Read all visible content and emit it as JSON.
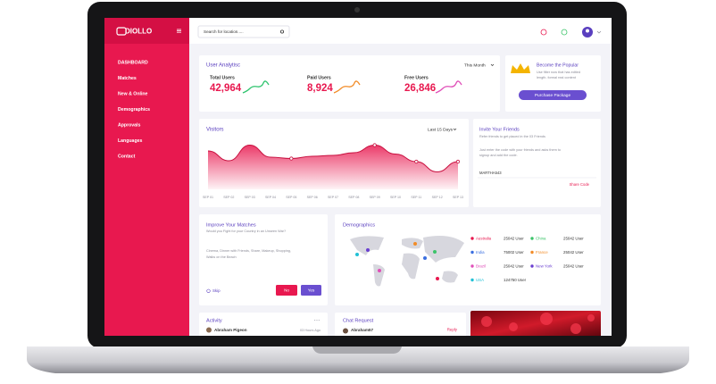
{
  "sidebar": {
    "logo": "DIOLLO",
    "menu": [
      "DASHBOARD",
      "Matches",
      "New & Online",
      "Demographics",
      "Approvals",
      "Languages",
      "Contact"
    ]
  },
  "topbar": {
    "search_placeholder": "Search for location....."
  },
  "user_analytics": {
    "title": "User Analytisc",
    "period": "This Month",
    "stats": [
      {
        "label": "Total Users",
        "value": "42,964"
      },
      {
        "label": "Paid Users",
        "value": "8,924"
      },
      {
        "label": "Free Users",
        "value": "26,846"
      }
    ]
  },
  "popular": {
    "title": "Become the Popular",
    "text": [
      "Use filter now that has edited",
      "length. formal real content"
    ],
    "button": "Purchase Package"
  },
  "visitors": {
    "title": "Visitors",
    "period": "Last 15 Days",
    "x": [
      "SEP 01",
      "SEP 02",
      "SEP 03",
      "SEP 04",
      "SEP 05",
      "SEP 06",
      "SEP 07",
      "SEP 08",
      "SEP 09",
      "SEP 10",
      "SEP 11",
      "SEP 12",
      "SEP 13"
    ],
    "values": [
      62,
      40,
      75,
      48,
      45,
      50,
      52,
      58,
      75,
      55,
      38,
      15,
      38
    ]
  },
  "invite": {
    "title": "Invite Your Friends",
    "subtitle": "Refer friends to get placed in the 03 Friends",
    "text": [
      "Just enter the code with your friends and asks them to",
      "signup and add the code."
    ],
    "code": "MARTHA543",
    "action": "Share Code"
  },
  "improve": {
    "title": "Improve Your Matches",
    "question": "Would you Fight for your Country in an Unseen War?",
    "interests": [
      "Cinema, Dinner with Friends, Share, Makeup, Shopping,",
      "Walks on the Beach"
    ],
    "skip": "Skip",
    "no": "No",
    "yes": "Yes"
  },
  "demographics": {
    "title": "Demographics",
    "rows": [
      {
        "name": "Australia",
        "users": "25042 User",
        "color": "#e8184f"
      },
      {
        "name": "China",
        "users": "25042 User",
        "color": "#3cc46a"
      },
      {
        "name": "India",
        "users": "75002 User",
        "color": "#3b6fe0"
      },
      {
        "name": "France",
        "users": "25042 User",
        "color": "#f28c28"
      },
      {
        "name": "Brazil",
        "users": "25042 User",
        "color": "#e04fb8"
      },
      {
        "name": "New York",
        "users": "25042 User",
        "color": "#6a3fd0"
      },
      {
        "name": "USA",
        "users": "124750 User",
        "color": "#22c1d6"
      }
    ]
  },
  "activity": {
    "title": "Activity",
    "more": "...",
    "name": "Abraham Pigeon",
    "time": "03 Hours Ago"
  },
  "chat": {
    "title": "Chat Request",
    "name": "Abraham57",
    "action": "Reply"
  }
}
